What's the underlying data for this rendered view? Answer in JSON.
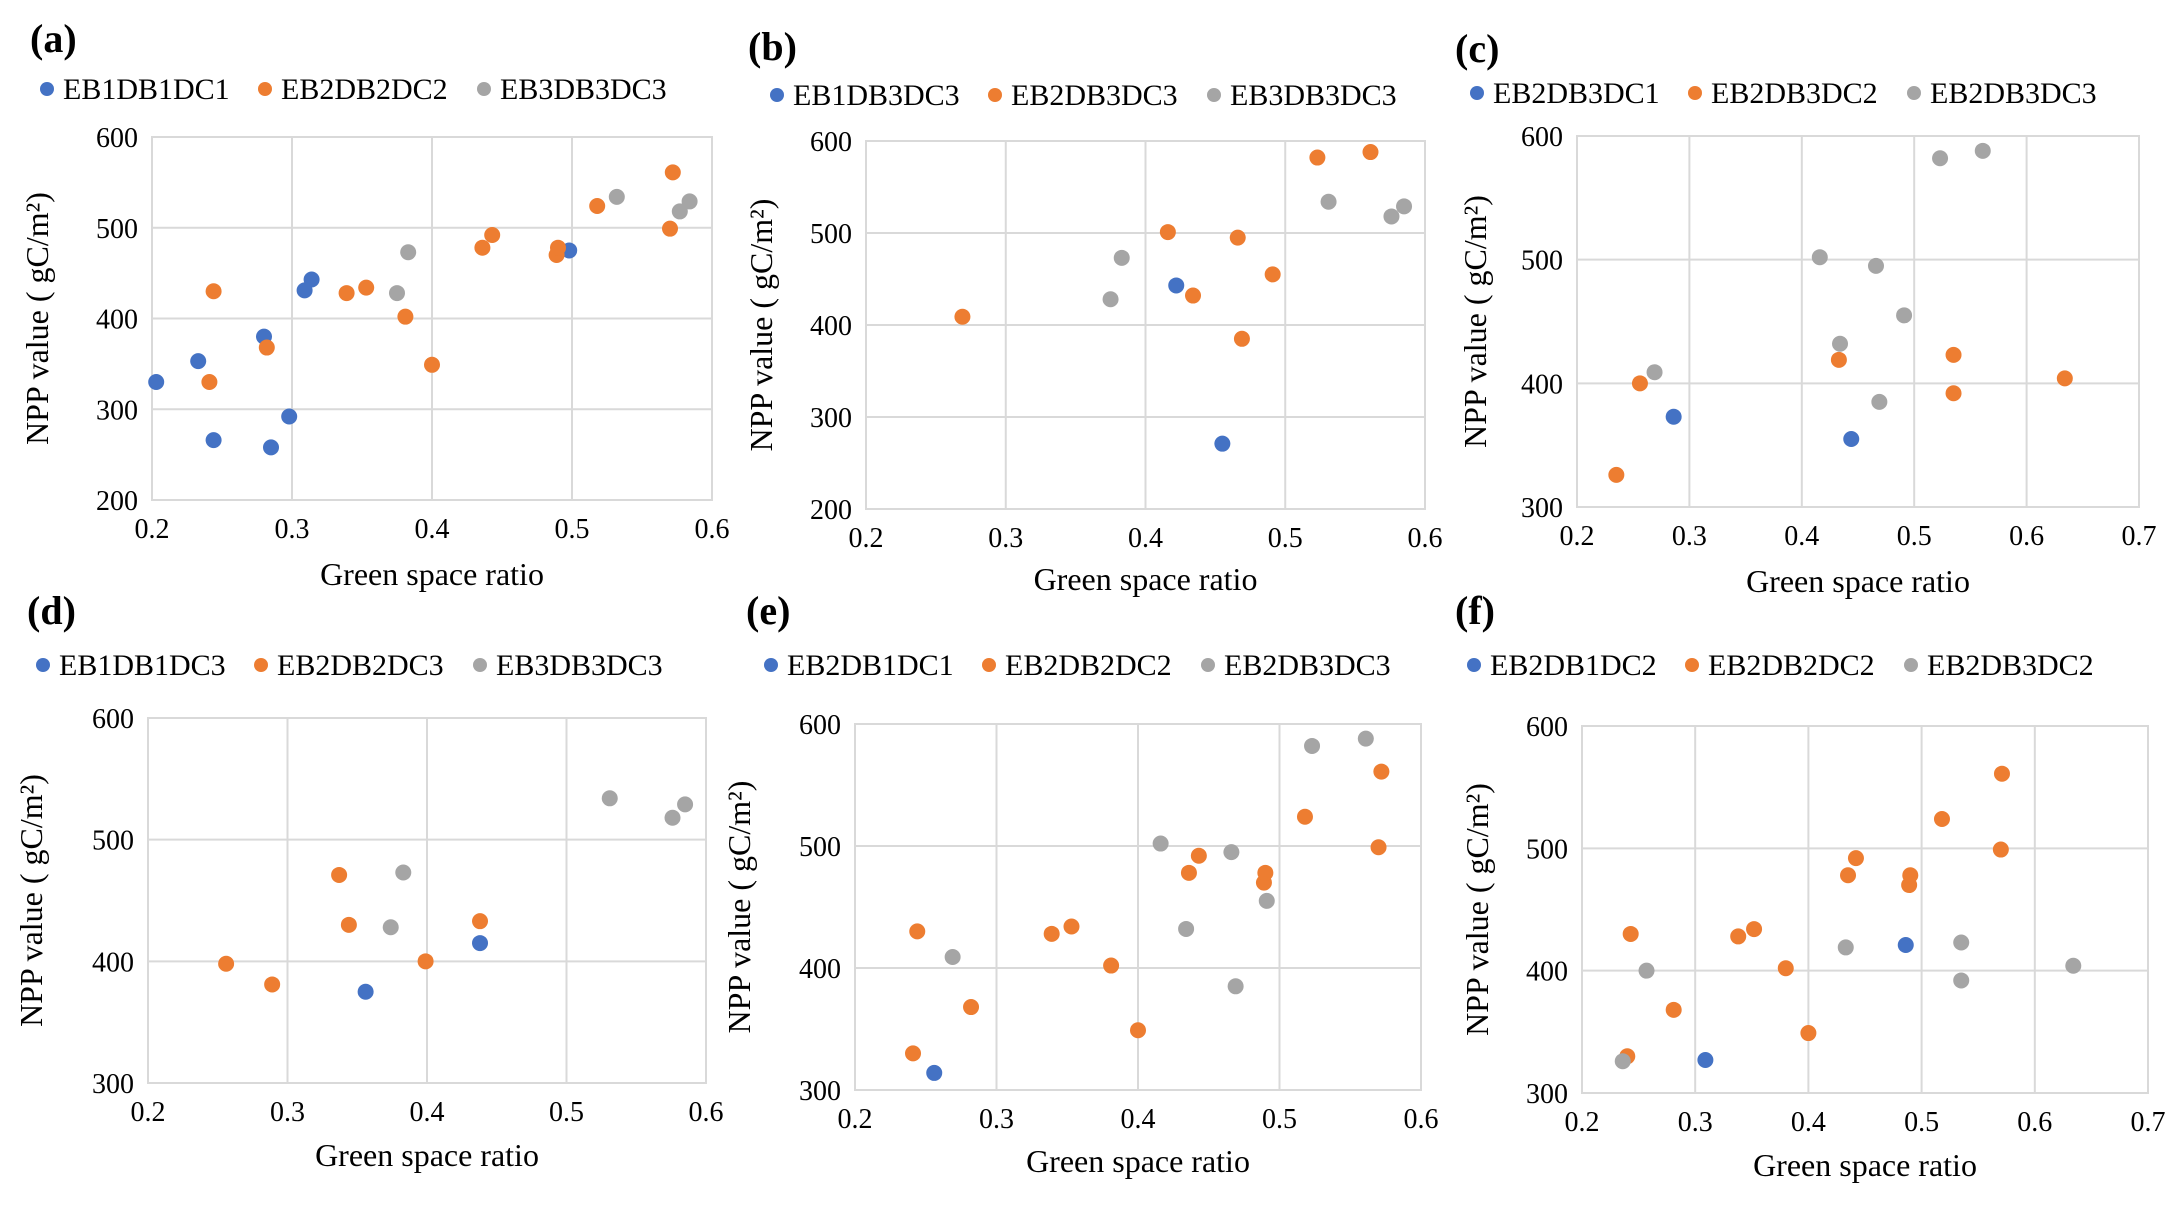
{
  "colors": {
    "series1": "#4472c4",
    "series2": "#ed7d31",
    "series3": "#a5a5a5"
  },
  "chart_data": [
    {
      "panel": "(a)",
      "type": "scatter",
      "xlabel": "Green space ratio",
      "ylabel": "NPP value ( gC/m²)",
      "xlim": [
        0.2,
        0.6
      ],
      "ylim": [
        200,
        600
      ],
      "xticks": [
        "0.2",
        "0.3",
        "0.4",
        "0.5",
        "0.6"
      ],
      "yticks": [
        "200",
        "300",
        "400",
        "500",
        "600"
      ],
      "series": [
        {
          "name": "EB1DB1DC1",
          "points": [
            [
              0.203,
              330
            ],
            [
              0.233,
              353
            ],
            [
              0.244,
              266
            ],
            [
              0.28,
              380
            ],
            [
              0.285,
              258
            ],
            [
              0.298,
              292
            ],
            [
              0.309,
              431
            ],
            [
              0.314,
              443
            ],
            [
              0.498,
              475
            ]
          ]
        },
        {
          "name": "EB2DB2DC2",
          "points": [
            [
              0.241,
              330
            ],
            [
              0.244,
              430
            ],
            [
              0.282,
              368
            ],
            [
              0.339,
              428
            ],
            [
              0.353,
              434
            ],
            [
              0.381,
              402
            ],
            [
              0.4,
              349
            ],
            [
              0.436,
              478
            ],
            [
              0.443,
              492
            ],
            [
              0.489,
              470
            ],
            [
              0.49,
              478
            ],
            [
              0.518,
              524
            ],
            [
              0.57,
              499
            ],
            [
              0.572,
              561
            ]
          ]
        },
        {
          "name": "EB3DB3DC3",
          "points": [
            [
              0.375,
              428
            ],
            [
              0.383,
              473
            ],
            [
              0.532,
              534
            ],
            [
              0.577,
              518
            ],
            [
              0.584,
              529
            ]
          ]
        }
      ]
    },
    {
      "panel": "(b)",
      "type": "scatter",
      "xlabel": "Green space ratio",
      "ylabel": "NPP value ( gC/m²)",
      "xlim": [
        0.2,
        0.6
      ],
      "ylim": [
        200,
        600
      ],
      "xticks": [
        "0.2",
        "0.3",
        "0.4",
        "0.5",
        "0.6"
      ],
      "yticks": [
        "200",
        "300",
        "400",
        "500",
        "600"
      ],
      "series": [
        {
          "name": "EB1DB3DC3",
          "points": [
            [
              0.422,
              443
            ],
            [
              0.455,
              271
            ]
          ]
        },
        {
          "name": "EB2DB3DC3",
          "points": [
            [
              0.269,
              409
            ],
            [
              0.416,
              501
            ],
            [
              0.434,
              432
            ],
            [
              0.466,
              495
            ],
            [
              0.469,
              385
            ],
            [
              0.491,
              455
            ],
            [
              0.523,
              582
            ],
            [
              0.561,
              588
            ]
          ]
        },
        {
          "name": "EB3DB3DC3",
          "points": [
            [
              0.375,
              428
            ],
            [
              0.383,
              473
            ],
            [
              0.531,
              534
            ],
            [
              0.576,
              518
            ],
            [
              0.585,
              529
            ]
          ]
        }
      ]
    },
    {
      "panel": "(c)",
      "type": "scatter",
      "xlabel": "Green space ratio",
      "ylabel": "NPP value ( gC/m²)",
      "xlim": [
        0.2,
        0.7
      ],
      "ylim": [
        300,
        600
      ],
      "xticks": [
        "0.2",
        "0.3",
        "0.4",
        "0.5",
        "0.6",
        "0.7"
      ],
      "yticks": [
        "300",
        "400",
        "500",
        "600"
      ],
      "series": [
        {
          "name": "EB2DB3DC1",
          "points": [
            [
              0.286,
              373
            ],
            [
              0.444,
              355
            ]
          ]
        },
        {
          "name": "EB2DB3DC2",
          "points": [
            [
              0.235,
              326
            ],
            [
              0.256,
              400
            ],
            [
              0.433,
              419
            ],
            [
              0.535,
              423
            ],
            [
              0.535,
              392
            ],
            [
              0.634,
              404
            ]
          ]
        },
        {
          "name": "EB2DB3DC3",
          "points": [
            [
              0.269,
              409
            ],
            [
              0.416,
              502
            ],
            [
              0.434,
              432
            ],
            [
              0.466,
              495
            ],
            [
              0.469,
              385
            ],
            [
              0.491,
              455
            ],
            [
              0.523,
              582
            ],
            [
              0.561,
              588
            ]
          ]
        }
      ]
    },
    {
      "panel": "(d)",
      "type": "scatter",
      "xlabel": "Green space ratio",
      "ylabel": "NPP value ( gC/m²)",
      "xlim": [
        0.2,
        0.6
      ],
      "ylim": [
        300,
        600
      ],
      "xticks": [
        "0.2",
        "0.3",
        "0.4",
        "0.5",
        "0.6"
      ],
      "yticks": [
        "300",
        "400",
        "500",
        "600"
      ],
      "series": [
        {
          "name": "EB1DB1DC3",
          "points": [
            [
              0.356,
              375
            ],
            [
              0.438,
              415
            ]
          ]
        },
        {
          "name": "EB2DB2DC3",
          "points": [
            [
              0.256,
              398
            ],
            [
              0.289,
              381
            ],
            [
              0.337,
              471
            ],
            [
              0.344,
              430
            ],
            [
              0.399,
              400
            ],
            [
              0.438,
              433
            ]
          ]
        },
        {
          "name": "EB3DB3DC3",
          "points": [
            [
              0.374,
              428
            ],
            [
              0.383,
              473
            ],
            [
              0.531,
              534
            ],
            [
              0.576,
              518
            ],
            [
              0.585,
              529
            ]
          ]
        }
      ]
    },
    {
      "panel": "(e)",
      "type": "scatter",
      "xlabel": "Green space ratio",
      "ylabel": "NPP value ( gC/m²)",
      "xlim": [
        0.2,
        0.6
      ],
      "ylim": [
        300,
        600
      ],
      "xticks": [
        "0.2",
        "0.3",
        "0.4",
        "0.5",
        "0.6"
      ],
      "yticks": [
        "300",
        "400",
        "500",
        "600"
      ],
      "series": [
        {
          "name": "EB2DB1DC1",
          "points": [
            [
              0.256,
              314
            ]
          ]
        },
        {
          "name": "EB2DB2DC2",
          "points": [
            [
              0.241,
              330
            ],
            [
              0.244,
              430
            ],
            [
              0.282,
              368
            ],
            [
              0.339,
              428
            ],
            [
              0.353,
              434
            ],
            [
              0.381,
              402
            ],
            [
              0.4,
              349
            ],
            [
              0.436,
              478
            ],
            [
              0.443,
              492
            ],
            [
              0.489,
              470
            ],
            [
              0.49,
              478
            ],
            [
              0.518,
              524
            ],
            [
              0.57,
              499
            ],
            [
              0.572,
              561
            ]
          ]
        },
        {
          "name": "EB2DB3DC3",
          "points": [
            [
              0.269,
              409
            ],
            [
              0.416,
              502
            ],
            [
              0.434,
              432
            ],
            [
              0.466,
              495
            ],
            [
              0.469,
              385
            ],
            [
              0.491,
              455
            ],
            [
              0.523,
              582
            ],
            [
              0.561,
              588
            ]
          ]
        }
      ]
    },
    {
      "panel": "(f)",
      "type": "scatter",
      "xlabel": "Green space ratio",
      "ylabel": "NPP value ( gC/m²)",
      "xlim": [
        0.2,
        0.7
      ],
      "ylim": [
        300,
        600
      ],
      "xticks": [
        "0.2",
        "0.3",
        "0.4",
        "0.5",
        "0.6",
        "0.7"
      ],
      "yticks": [
        "300",
        "400",
        "500",
        "600"
      ],
      "series": [
        {
          "name": "EB2DB1DC2",
          "points": [
            [
              0.309,
              327
            ],
            [
              0.486,
              421
            ]
          ]
        },
        {
          "name": "EB2DB2DC2",
          "points": [
            [
              0.24,
              330
            ],
            [
              0.243,
              430
            ],
            [
              0.281,
              368
            ],
            [
              0.338,
              428
            ],
            [
              0.352,
              434
            ],
            [
              0.38,
              402
            ],
            [
              0.4,
              349
            ],
            [
              0.435,
              478
            ],
            [
              0.442,
              492
            ],
            [
              0.489,
              470
            ],
            [
              0.49,
              478
            ],
            [
              0.518,
              524
            ],
            [
              0.57,
              499
            ],
            [
              0.571,
              561
            ]
          ]
        },
        {
          "name": "EB2DB3DC2",
          "points": [
            [
              0.236,
              326
            ],
            [
              0.257,
              400
            ],
            [
              0.433,
              419
            ],
            [
              0.535,
              423
            ],
            [
              0.535,
              392
            ],
            [
              0.634,
              404
            ]
          ]
        }
      ]
    }
  ]
}
